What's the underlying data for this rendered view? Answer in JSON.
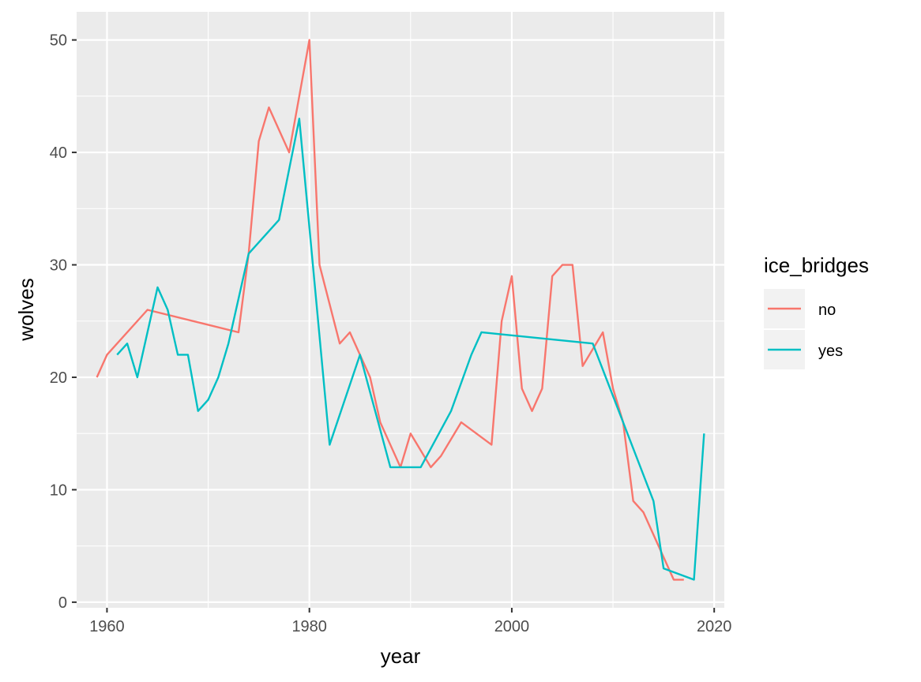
{
  "chart_data": {
    "type": "line",
    "title": "",
    "xlabel": "year",
    "ylabel": "wolves",
    "xlim": [
      1957.0,
      2021.0
    ],
    "ylim": [
      -0.5,
      52.5
    ],
    "xticks": [
      1960,
      1980,
      2000,
      2020
    ],
    "yticks": [
      0,
      10,
      20,
      30,
      40,
      50
    ],
    "grid": true,
    "background": "#ebebeb",
    "legend": {
      "title": "ice_bridges",
      "placement": "right"
    },
    "series": [
      {
        "name": "no",
        "color": "#f8766d",
        "x": [
          1959,
          1960,
          1964,
          1973,
          1974,
          1975,
          1976,
          1978,
          1980,
          1981,
          1983,
          1984,
          1985,
          1986,
          1987,
          1989,
          1990,
          1992,
          1993,
          1995,
          1998,
          1999,
          2000,
          2001,
          2002,
          2003,
          2004,
          2005,
          2006,
          2007,
          2009,
          2010,
          2011,
          2012,
          2013,
          2014,
          2016,
          2017
        ],
        "y": [
          20,
          22,
          26,
          24,
          31,
          41,
          44,
          40,
          50,
          30,
          23,
          24,
          22,
          20,
          16,
          12,
          15,
          12,
          13,
          16,
          14,
          25,
          29,
          19,
          17,
          19,
          29,
          30,
          30,
          21,
          24,
          19,
          16,
          9,
          8,
          6,
          2,
          2
        ]
      },
      {
        "name": "yes",
        "color": "#00bfc4",
        "x": [
          1961,
          1962,
          1963,
          1965,
          1966,
          1967,
          1968,
          1969,
          1970,
          1971,
          1972,
          1974,
          1977,
          1979,
          1982,
          1985,
          1988,
          1991,
          1994,
          1996,
          1997,
          2008,
          2014,
          2015,
          2018,
          2019
        ],
        "y": [
          22,
          23,
          20,
          28,
          26,
          22,
          22,
          17,
          18,
          20,
          23,
          31,
          34,
          43,
          14,
          22,
          12,
          12,
          17,
          22,
          24,
          23,
          9,
          3,
          2,
          15
        ]
      }
    ]
  }
}
